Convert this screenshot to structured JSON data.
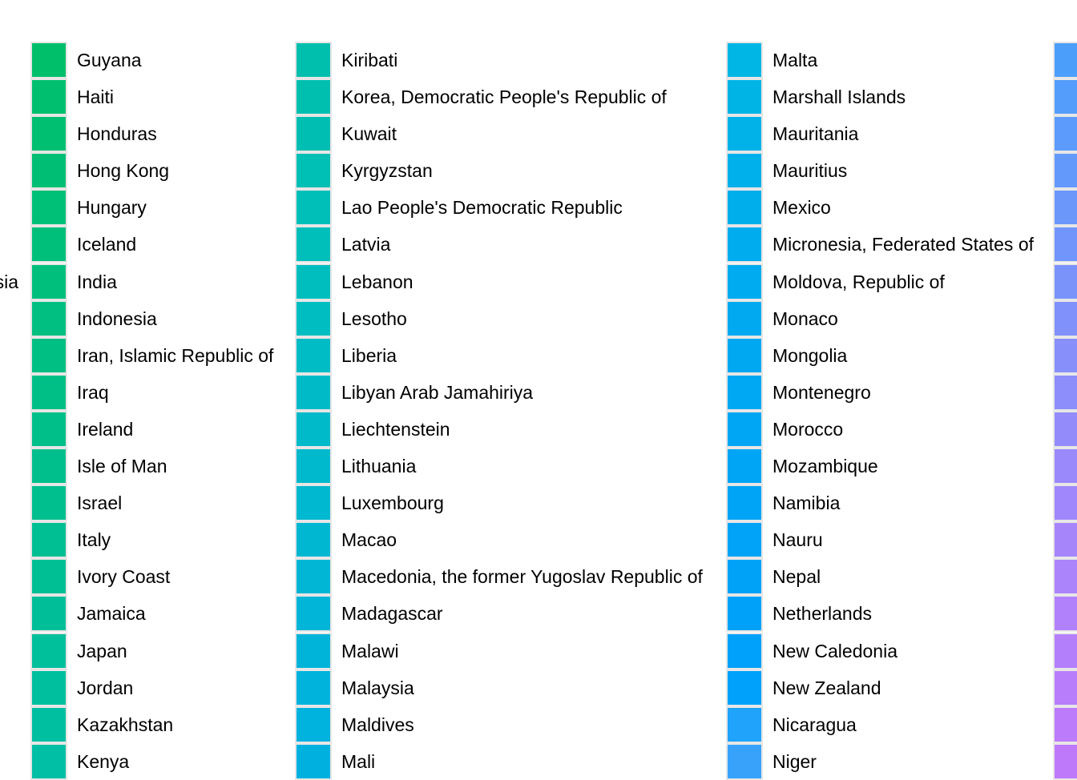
{
  "left_fragment": "sia",
  "columns": [
    {
      "items": [
        {
          "label": "Guyana",
          "color": "#00bf6b"
        },
        {
          "label": "Haiti",
          "color": "#00bf6e"
        },
        {
          "label": "Honduras",
          "color": "#00bf71"
        },
        {
          "label": "Hong Kong",
          "color": "#00bf74"
        },
        {
          "label": "Hungary",
          "color": "#00bf77"
        },
        {
          "label": "Iceland",
          "color": "#00bf7a"
        },
        {
          "label": "India",
          "color": "#00bf7d"
        },
        {
          "label": "Indonesia",
          "color": "#00bf80"
        },
        {
          "label": "Iran, Islamic Republic of",
          "color": "#00bf83"
        },
        {
          "label": "Iraq",
          "color": "#00bf86"
        },
        {
          "label": "Ireland",
          "color": "#00bf89"
        },
        {
          "label": "Isle of Man",
          "color": "#00bf8c"
        },
        {
          "label": "Israel",
          "color": "#00bf8f"
        },
        {
          "label": "Italy",
          "color": "#00bf92"
        },
        {
          "label": "Ivory Coast",
          "color": "#00bf95"
        },
        {
          "label": "Jamaica",
          "color": "#00bf98"
        },
        {
          "label": "Japan",
          "color": "#00bf9b"
        },
        {
          "label": "Jordan",
          "color": "#00bf9e"
        },
        {
          "label": "Kazakhstan",
          "color": "#00bfa1"
        },
        {
          "label": "Kenya",
          "color": "#00bfa4"
        }
      ]
    },
    {
      "items": [
        {
          "label": "Kiribati",
          "color": "#00bfac"
        },
        {
          "label": "Korea, Democratic People's Republic of",
          "color": "#00bfaf"
        },
        {
          "label": "Kuwait",
          "color": "#00bfb2"
        },
        {
          "label": "Kyrgyzstan",
          "color": "#00bfb5"
        },
        {
          "label": "Lao People's Democratic Republic",
          "color": "#00bfb8"
        },
        {
          "label": "Latvia",
          "color": "#00bfbb"
        },
        {
          "label": "Lebanon",
          "color": "#00bebe"
        },
        {
          "label": "Lesotho",
          "color": "#00bdc1"
        },
        {
          "label": "Liberia",
          "color": "#00bcc4"
        },
        {
          "label": "Libyan Arab Jamahiriya",
          "color": "#00bbc7"
        },
        {
          "label": "Liechtenstein",
          "color": "#00bac9"
        },
        {
          "label": "Lithuania",
          "color": "#00b9cc"
        },
        {
          "label": "Luxembourg",
          "color": "#00b8cf"
        },
        {
          "label": "Macao",
          "color": "#00b7d2"
        },
        {
          "label": "Macedonia, the former Yugoslav Republic of",
          "color": "#00b6d4"
        },
        {
          "label": "Madagascar",
          "color": "#00b5d7"
        },
        {
          "label": "Malawi",
          "color": "#00b4d9"
        },
        {
          "label": "Malaysia",
          "color": "#00b3dc"
        },
        {
          "label": "Maldives",
          "color": "#00b2de"
        },
        {
          "label": "Mali",
          "color": "#00b1e0"
        }
      ]
    },
    {
      "items": [
        {
          "label": "Malta",
          "color": "#00b6e4"
        },
        {
          "label": "Marshall Islands",
          "color": "#00b4e6"
        },
        {
          "label": "Mauritania",
          "color": "#00b2e8"
        },
        {
          "label": "Mauritius",
          "color": "#00b0ea"
        },
        {
          "label": "Mexico",
          "color": "#00aeec"
        },
        {
          "label": "Micronesia, Federated States of",
          "color": "#00aced"
        },
        {
          "label": "Moldova, Republic of",
          "color": "#00abef"
        },
        {
          "label": "Monaco",
          "color": "#00a9f0"
        },
        {
          "label": "Mongolia",
          "color": "#00a8f2"
        },
        {
          "label": "Montenegro",
          "color": "#00a7f3"
        },
        {
          "label": "Morocco",
          "color": "#00a6f4"
        },
        {
          "label": "Mozambique",
          "color": "#00a5f5"
        },
        {
          "label": "Namibia",
          "color": "#00a4f6"
        },
        {
          "label": "Nauru",
          "color": "#00a3f7"
        },
        {
          "label": "Nepal",
          "color": "#00a2f8"
        },
        {
          "label": "Netherlands",
          "color": "#00a2f9"
        },
        {
          "label": "New Caledonia",
          "color": "#00a1fa"
        },
        {
          "label": "New Zealand",
          "color": "#00a1fb"
        },
        {
          "label": "Nicaragua",
          "color": "#1fa3fb"
        },
        {
          "label": "Niger",
          "color": "#38a2fb"
        }
      ]
    },
    {
      "items": [
        {
          "label": "",
          "color": "#4b9ffb"
        },
        {
          "label": "",
          "color": "#549dfb"
        },
        {
          "label": "",
          "color": "#5c9bfb"
        },
        {
          "label": "",
          "color": "#6399fb"
        },
        {
          "label": "",
          "color": "#6b97fb"
        },
        {
          "label": "",
          "color": "#7295fb"
        },
        {
          "label": "",
          "color": "#7993fb"
        },
        {
          "label": "",
          "color": "#8091fb"
        },
        {
          "label": "",
          "color": "#878ffb"
        },
        {
          "label": "",
          "color": "#8d8dfb"
        },
        {
          "label": "",
          "color": "#948bfb"
        },
        {
          "label": "",
          "color": "#9a89fb"
        },
        {
          "label": "",
          "color": "#a087fb"
        },
        {
          "label": "",
          "color": "#a685fb"
        },
        {
          "label": "",
          "color": "#ab83fb"
        },
        {
          "label": "",
          "color": "#b081fb"
        },
        {
          "label": "",
          "color": "#b47ffb"
        },
        {
          "label": "",
          "color": "#b87dfb"
        },
        {
          "label": "",
          "color": "#bb7bfb"
        },
        {
          "label": "",
          "color": "#be79fb"
        }
      ]
    }
  ]
}
